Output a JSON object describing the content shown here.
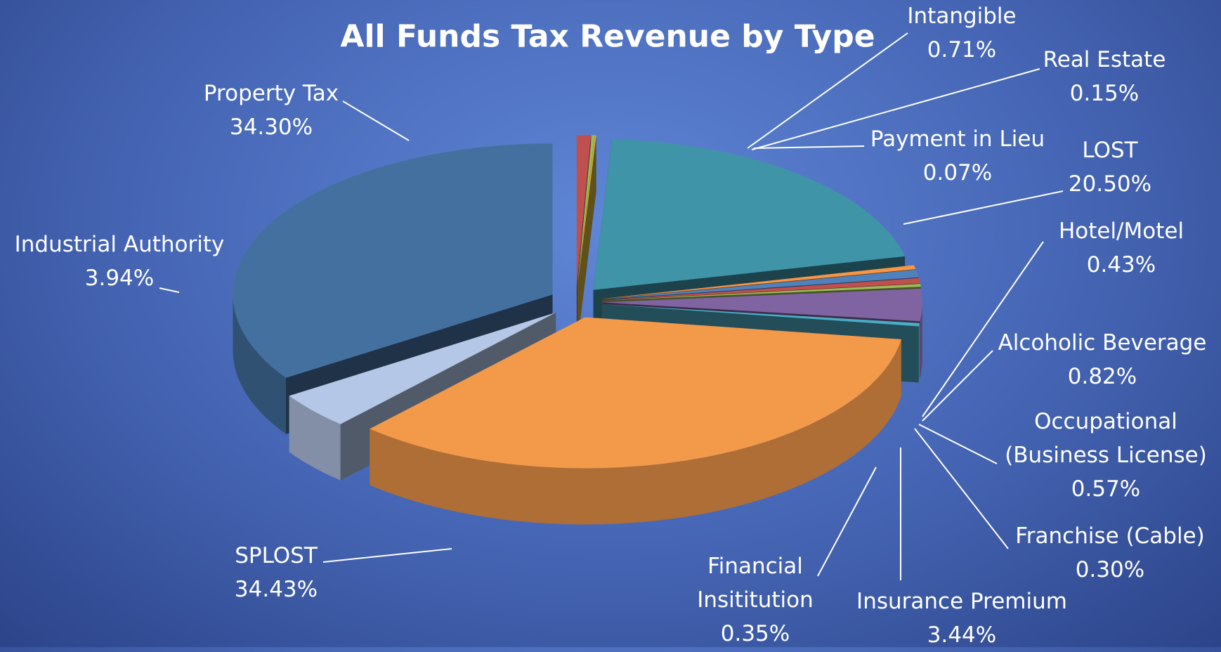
{
  "chart_data": {
    "type": "pie3d",
    "title": "All Funds Tax Revenue by Type",
    "categories": [
      "Intangible",
      "Real Estate",
      "Payment in Lieu",
      "LOST",
      "Hotel/Motel",
      "Alcoholic Beverage",
      "Occupational (Business License)",
      "Franchise (Cable)",
      "Insurance Premium",
      "Financial Insititution",
      "SPLOST",
      "Industrial Authority",
      "Property Tax"
    ],
    "values": [
      0.71,
      0.15,
      0.07,
      20.5,
      0.43,
      0.82,
      0.57,
      0.3,
      3.44,
      0.35,
      34.43,
      3.94,
      34.3
    ],
    "value_labels": [
      "0.71%",
      "0.15%",
      "0.07%",
      "20.50%",
      "0.43%",
      "0.82%",
      "0.57%",
      "0.30%",
      "3.44%",
      "0.35%",
      "34.43%",
      "3.94%",
      "34.30%"
    ],
    "colors": [
      "#c0504d",
      "#9bbb59",
      "#d6b23a",
      "#3f94a8",
      "#f79646",
      "#4f81bd",
      "#c0504d",
      "#9bbb59",
      "#8064a2",
      "#4bacc6",
      "#f3994a",
      "#b4c7e7",
      "#44709f"
    ]
  }
}
